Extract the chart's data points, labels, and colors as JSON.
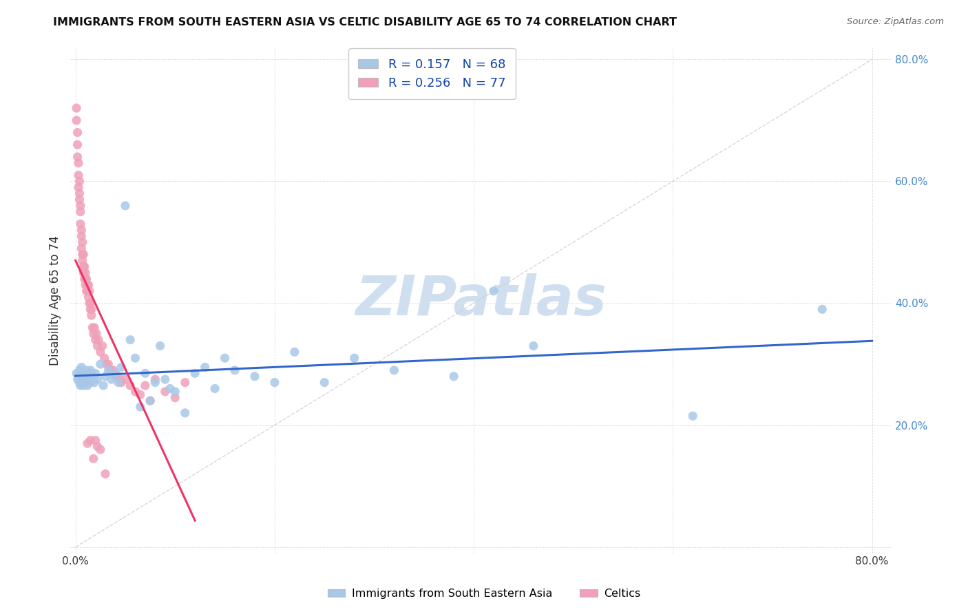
{
  "title": "IMMIGRANTS FROM SOUTH EASTERN ASIA VS CELTIC DISABILITY AGE 65 TO 74 CORRELATION CHART",
  "source": "Source: ZipAtlas.com",
  "ylabel": "Disability Age 65 to 74",
  "xlim": [
    -0.005,
    0.82
  ],
  "ylim": [
    -0.01,
    0.82
  ],
  "blue_R": 0.157,
  "blue_N": 68,
  "pink_R": 0.256,
  "pink_N": 77,
  "blue_color": "#A8C8E8",
  "pink_color": "#F0A0B8",
  "blue_line_color": "#3366CC",
  "pink_line_color": "#EE3366",
  "diagonal_color": "#CCCCCC",
  "watermark": "ZIPatlas",
  "watermark_color": "#D0DFF0",
  "legend_label_blue": "Immigrants from South Eastern Asia",
  "legend_label_pink": "Celtics",
  "blue_scatter_x": [
    0.001,
    0.002,
    0.003,
    0.004,
    0.004,
    0.005,
    0.005,
    0.006,
    0.006,
    0.007,
    0.007,
    0.008,
    0.008,
    0.009,
    0.009,
    0.01,
    0.01,
    0.011,
    0.011,
    0.012,
    0.012,
    0.013,
    0.013,
    0.014,
    0.015,
    0.015,
    0.016,
    0.017,
    0.018,
    0.019,
    0.02,
    0.022,
    0.025,
    0.028,
    0.03,
    0.033,
    0.036,
    0.04,
    0.043,
    0.046,
    0.05,
    0.055,
    0.06,
    0.065,
    0.07,
    0.075,
    0.08,
    0.085,
    0.09,
    0.095,
    0.1,
    0.11,
    0.12,
    0.13,
    0.14,
    0.15,
    0.16,
    0.18,
    0.2,
    0.22,
    0.25,
    0.28,
    0.32,
    0.38,
    0.42,
    0.46,
    0.62,
    0.75
  ],
  "blue_scatter_y": [
    0.285,
    0.275,
    0.28,
    0.27,
    0.29,
    0.265,
    0.275,
    0.285,
    0.295,
    0.27,
    0.28,
    0.275,
    0.265,
    0.285,
    0.275,
    0.28,
    0.27,
    0.29,
    0.275,
    0.28,
    0.265,
    0.285,
    0.275,
    0.28,
    0.27,
    0.29,
    0.285,
    0.275,
    0.28,
    0.27,
    0.285,
    0.275,
    0.3,
    0.265,
    0.28,
    0.29,
    0.275,
    0.285,
    0.27,
    0.295,
    0.56,
    0.34,
    0.31,
    0.23,
    0.285,
    0.24,
    0.27,
    0.33,
    0.275,
    0.26,
    0.255,
    0.22,
    0.285,
    0.295,
    0.26,
    0.31,
    0.29,
    0.28,
    0.27,
    0.32,
    0.27,
    0.31,
    0.29,
    0.28,
    0.42,
    0.33,
    0.215,
    0.39
  ],
  "pink_scatter_x": [
    0.001,
    0.001,
    0.002,
    0.002,
    0.002,
    0.003,
    0.003,
    0.003,
    0.004,
    0.004,
    0.004,
    0.005,
    0.005,
    0.005,
    0.006,
    0.006,
    0.006,
    0.007,
    0.007,
    0.007,
    0.008,
    0.008,
    0.008,
    0.009,
    0.009,
    0.01,
    0.01,
    0.01,
    0.011,
    0.011,
    0.012,
    0.012,
    0.013,
    0.013,
    0.014,
    0.014,
    0.015,
    0.015,
    0.016,
    0.016,
    0.017,
    0.018,
    0.019,
    0.02,
    0.021,
    0.022,
    0.023,
    0.025,
    0.027,
    0.029,
    0.031,
    0.033,
    0.035,
    0.038,
    0.04,
    0.043,
    0.046,
    0.05,
    0.055,
    0.06,
    0.065,
    0.07,
    0.075,
    0.08,
    0.09,
    0.1,
    0.11,
    0.03,
    0.015,
    0.012,
    0.02,
    0.025,
    0.018,
    0.022,
    0.008,
    0.009,
    0.01
  ],
  "pink_scatter_y": [
    0.7,
    0.72,
    0.66,
    0.68,
    0.64,
    0.63,
    0.61,
    0.59,
    0.6,
    0.58,
    0.57,
    0.55,
    0.56,
    0.53,
    0.52,
    0.51,
    0.49,
    0.5,
    0.48,
    0.47,
    0.46,
    0.48,
    0.45,
    0.46,
    0.44,
    0.44,
    0.45,
    0.43,
    0.42,
    0.44,
    0.42,
    0.43,
    0.41,
    0.43,
    0.4,
    0.42,
    0.4,
    0.39,
    0.39,
    0.38,
    0.36,
    0.35,
    0.36,
    0.34,
    0.35,
    0.33,
    0.34,
    0.32,
    0.33,
    0.31,
    0.3,
    0.3,
    0.29,
    0.29,
    0.28,
    0.28,
    0.27,
    0.275,
    0.265,
    0.255,
    0.25,
    0.265,
    0.24,
    0.275,
    0.255,
    0.245,
    0.27,
    0.12,
    0.175,
    0.17,
    0.175,
    0.16,
    0.145,
    0.165,
    0.275,
    0.28,
    0.27
  ]
}
